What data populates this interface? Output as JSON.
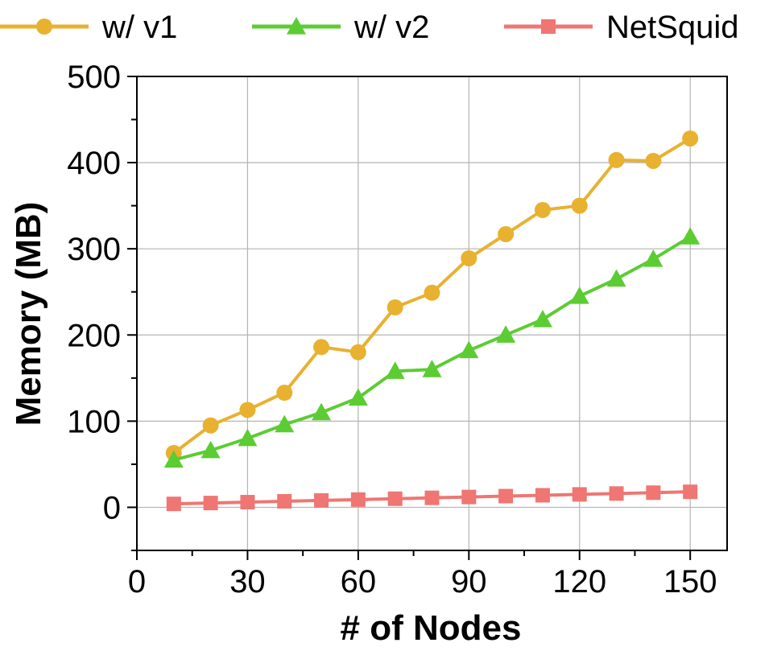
{
  "chart_data": {
    "type": "line",
    "title": "",
    "xlabel": "# of Nodes",
    "ylabel": "Memory (MB)",
    "xlim": [
      0,
      160
    ],
    "ylim": [
      -50,
      500
    ],
    "xticks": [
      0,
      30,
      60,
      90,
      120,
      150
    ],
    "yticks": [
      0,
      100,
      200,
      300,
      400,
      500
    ],
    "x_minor_ticks": [
      15,
      45,
      75,
      105,
      135
    ],
    "y_minor_ticks": [
      -50,
      50,
      150,
      250,
      350,
      450
    ],
    "grid": true,
    "legend_position": "top",
    "x": [
      10,
      20,
      30,
      40,
      50,
      60,
      70,
      80,
      90,
      100,
      110,
      120,
      130,
      140,
      150
    ],
    "series": [
      {
        "name": "w/ v1",
        "color": "#E8B130",
        "marker": "circle",
        "values": [
          63,
          95,
          113,
          133,
          186,
          180,
          232,
          249,
          289,
          317,
          345,
          350,
          403,
          402,
          428
        ]
      },
      {
        "name": "w/ v2",
        "color": "#5CCC33",
        "marker": "triangle",
        "values": [
          55,
          66,
          80,
          96,
          110,
          127,
          158,
          160,
          182,
          200,
          218,
          245,
          265,
          288,
          314
        ]
      },
      {
        "name": "NetSquid",
        "color": "#EF7672",
        "marker": "square",
        "values": [
          4,
          5,
          6,
          7,
          8,
          9,
          10,
          11,
          12,
          13,
          14,
          15,
          16,
          17,
          18
        ]
      }
    ]
  }
}
